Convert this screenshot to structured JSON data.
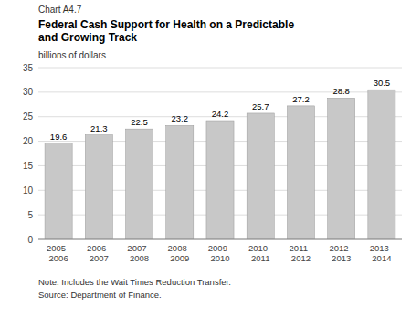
{
  "chart_data": {
    "type": "bar",
    "title": "Federal Cash Support for Health on a Predictable\nand Growing Track",
    "y_label": "billions of dollars",
    "annotations": [
      "Chart A4.7",
      "Note: Includes the Wait Times Reduction Transfer.",
      "Source: Department of Finance."
    ],
    "categories": [
      "2005–\n2006",
      "2006–\n2007",
      "2007–\n2008",
      "2008–\n2009",
      "2009–\n2010",
      "2010–\n2011",
      "2011–\n2012",
      "2012–\n2013",
      "2013–\n2014"
    ],
    "values": [
      19.6,
      21.3,
      22.5,
      23.2,
      24.2,
      25.7,
      27.2,
      28.8,
      30.5
    ],
    "color": "#c8c8c8",
    "ylim": [
      0,
      35
    ],
    "yticks": [
      0,
      5,
      10,
      15,
      20,
      25,
      30,
      35
    ],
    "grid": true,
    "data_labels": true
  }
}
